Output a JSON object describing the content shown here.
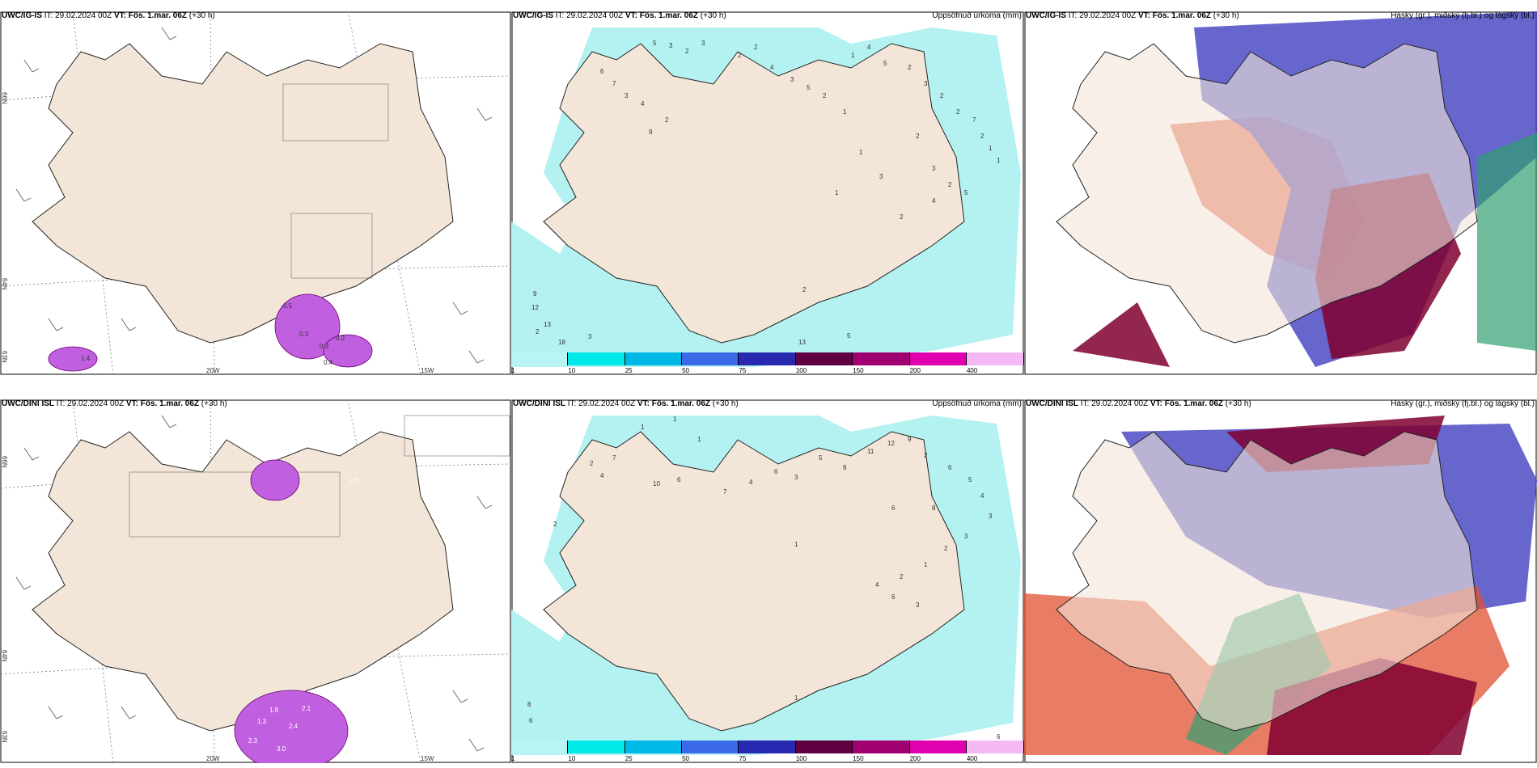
{
  "rows": [
    {
      "model": "UWC/IG-IS",
      "it_label": "IT:",
      "it_value": "29.02.2024 00Z",
      "vt_label": "VT:",
      "vt_value": "Fös. 1.mar. 06Z",
      "lead": "(+30 h)"
    },
    {
      "model": "UWC/DINI ISL",
      "it_label": "IT:",
      "it_value": "29.02.2024 00Z",
      "vt_label": "VT:",
      "vt_value": "Fös. 1.mar. 06Z",
      "lead": "(+30 h)"
    }
  ],
  "panel_titles": {
    "precip": "Uppsöfnuð úrkoma (mm)",
    "cloud": "Háský (gr.), miðský (fj.bl.) og lágský (bl.)"
  },
  "lat_labels": [
    "66N",
    "64N",
    "63N"
  ],
  "lon_labels": [
    "20W",
    "15W"
  ],
  "colorbar": {
    "ticks": [
      "1",
      "10",
      "25",
      "50",
      "75",
      "100",
      "150",
      "200",
      "400"
    ],
    "colors": [
      "#b8f4f4",
      "#00e8e8",
      "#00b8e8",
      "#3a6ae8",
      "#2828b0",
      "#600040",
      "#a00070",
      "#e000b0",
      "#f4b8f4"
    ]
  },
  "colors": {
    "land": "#f3e6d8",
    "precip_light": "#b4f2f2",
    "wind_barb": "#555555",
    "snow_magenta": "#c060e0",
    "cloud_high_red": "#e05030",
    "cloud_mid_blue": "#4040c0",
    "cloud_low_green": "#30a070",
    "cloud_dark": "#800030"
  },
  "precip_values": {
    "top": [
      "5",
      "3",
      "2",
      "3",
      "2",
      "2",
      "4",
      "3",
      "5",
      "2",
      "6",
      "7",
      "3",
      "4",
      "9",
      "2",
      "1",
      "4",
      "5",
      "2",
      "3",
      "2",
      "2",
      "7",
      "2",
      "1",
      "1",
      "3",
      "2",
      "5",
      "2",
      "1",
      "1",
      "3",
      "2",
      "4",
      "1",
      "9",
      "12",
      "13",
      "18",
      "3",
      "2",
      "13",
      "5",
      "2"
    ],
    "bottom": [
      "1",
      "1",
      "1",
      "4",
      "2",
      "7",
      "10",
      "6",
      "7",
      "4",
      "6",
      "3",
      "5",
      "8",
      "11",
      "12",
      "9",
      "2",
      "6",
      "5",
      "4",
      "3",
      "3",
      "2",
      "1",
      "2",
      "4",
      "6",
      "3",
      "8",
      "6",
      "1",
      "2",
      "1",
      "8",
      "6",
      "6"
    ]
  },
  "snow_values": {
    "top": [
      "0.5",
      "0.3",
      "0.3",
      "0.4",
      "0.2",
      "1.4"
    ],
    "bottom": [
      "1.9",
      "2.1",
      "2.4",
      "2.3",
      "3.0",
      "1.3",
      "0.5"
    ]
  }
}
